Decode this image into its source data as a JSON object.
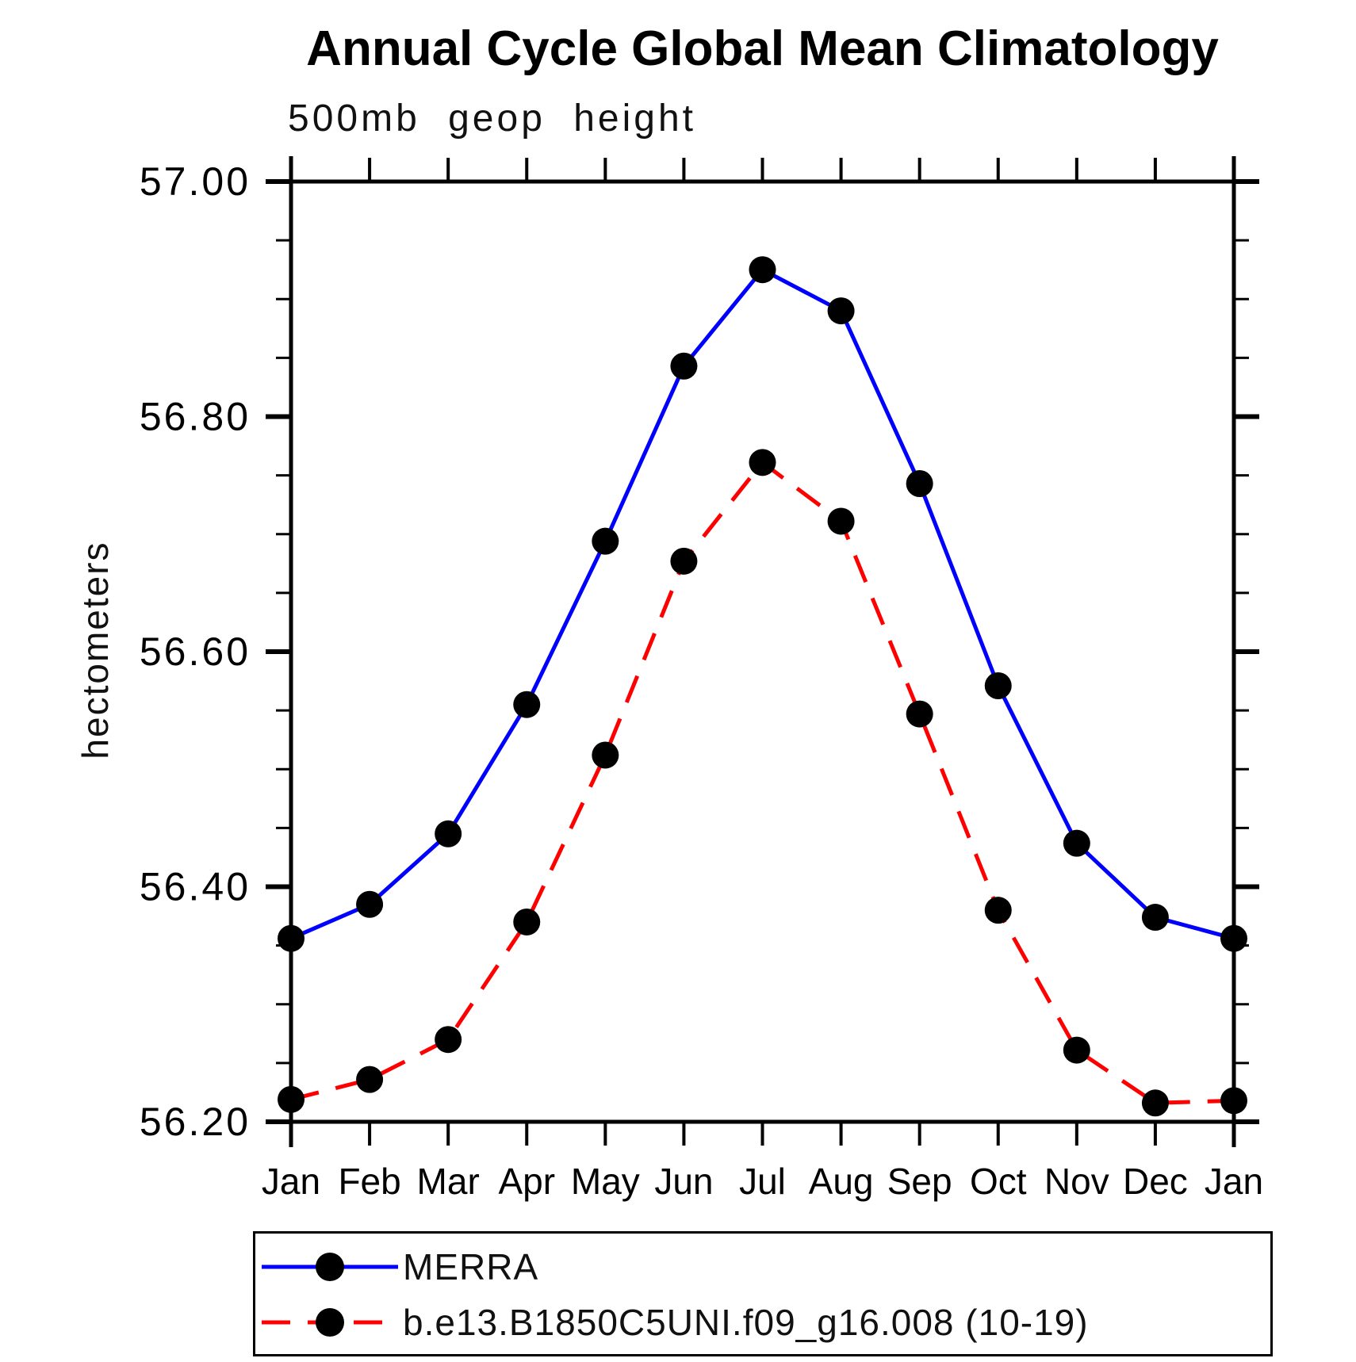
{
  "chart_data": {
    "type": "line",
    "title": "Annual Cycle Global Mean Climatology",
    "subtitle": "500mb geop height",
    "ylabel": "hectometers",
    "categories": [
      "Jan",
      "Feb",
      "Mar",
      "Apr",
      "May",
      "Jun",
      "Jul",
      "Aug",
      "Sep",
      "Oct",
      "Nov",
      "Dec",
      "Jan"
    ],
    "ylim": [
      56.2,
      57.0
    ],
    "ytick_values": [
      57.0,
      56.8,
      56.6,
      56.4,
      56.2
    ],
    "ytick_labels": [
      "57.00",
      "56.80",
      "56.60",
      "56.40",
      "56.20"
    ],
    "minor_tick_step": 0.05,
    "grid": false,
    "legend_position": "bottom-left",
    "axis_color": "#000000",
    "marker_color": "#000000",
    "series": [
      {
        "name": "MERRA",
        "color": "#0000ff",
        "line_style": "solid",
        "values": [
          56.356,
          56.385,
          56.445,
          56.555,
          56.694,
          56.843,
          56.925,
          56.89,
          56.743,
          56.571,
          56.437,
          56.374,
          56.356
        ]
      },
      {
        "name": "b.e13.B1850C5UNI.f09_g16.008 (10-19)",
        "color": "#ff0000",
        "line_style": "dashed",
        "values": [
          56.219,
          56.236,
          56.27,
          56.37,
          56.512,
          56.677,
          56.761,
          56.711,
          56.547,
          56.38,
          56.261,
          56.216,
          56.218
        ]
      }
    ]
  }
}
